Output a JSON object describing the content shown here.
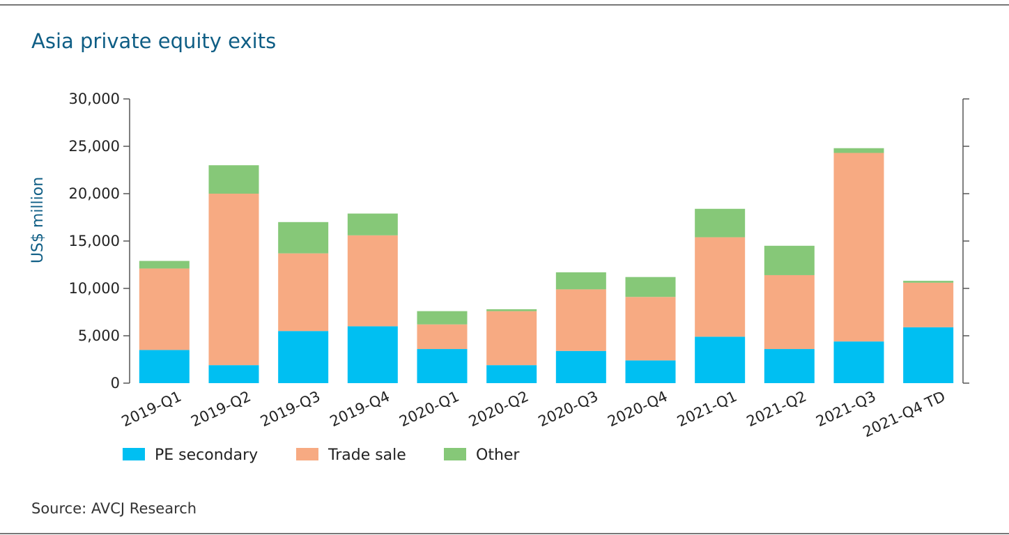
{
  "page": {
    "title": "Asia private equity exits",
    "source": "Source: AVCJ Research"
  },
  "chart_data": {
    "type": "bar",
    "stacked": true,
    "title": "Asia private equity exits",
    "ylabel": "US$ million",
    "xlabel": "",
    "ylim": [
      0,
      30000
    ],
    "yticks": [
      0,
      5000,
      10000,
      15000,
      20000,
      25000,
      30000
    ],
    "ytick_labels": [
      "0",
      "5,000",
      "10,000",
      "15,000",
      "20,000",
      "25,000",
      "30,000"
    ],
    "grid": false,
    "legend_position": "bottom-left",
    "categories": [
      "2019-Q1",
      "2019-Q2",
      "2019-Q3",
      "2019-Q4",
      "2020-Q1",
      "2020-Q2",
      "2020-Q3",
      "2020-Q4",
      "2021-Q1",
      "2021-Q2",
      "2021-Q3",
      "2021-Q4 TD"
    ],
    "series": [
      {
        "name": "PE secondary",
        "color": "#00bff2",
        "values": [
          3500,
          1900,
          5500,
          6000,
          3600,
          1900,
          3400,
          2400,
          4900,
          3600,
          4400,
          5900
        ]
      },
      {
        "name": "Trade sale",
        "color": "#f7aa82",
        "values": [
          8600,
          18100,
          8200,
          9600,
          2600,
          5700,
          6500,
          6700,
          10500,
          7800,
          19900,
          4700
        ]
      },
      {
        "name": "Other",
        "color": "#86c878",
        "values": [
          800,
          3000,
          3300,
          2300,
          1400,
          200,
          1800,
          2100,
          3000,
          3100,
          500,
          200
        ]
      }
    ]
  }
}
